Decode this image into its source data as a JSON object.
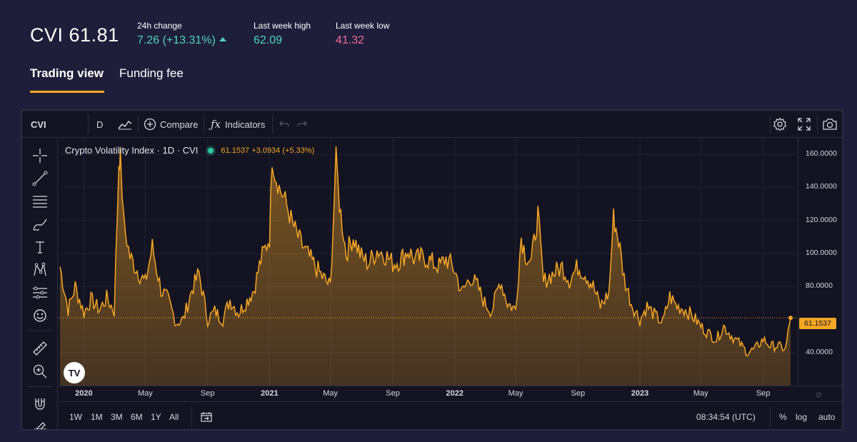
{
  "header": {
    "symbol": "CVI",
    "price": "61.81",
    "change_label": "24h change",
    "change_value": "7.26 (+13.31%)",
    "high_label": "Last week high",
    "high_value": "62.09",
    "low_label": "Last week low",
    "low_value": "41.32"
  },
  "tabs": [
    {
      "label": "Trading view",
      "active": true
    },
    {
      "label": "Funding fee",
      "active": false
    }
  ],
  "toolbar": {
    "symbol": "CVI",
    "interval": "D",
    "compare_label": "Compare",
    "indicators_label": "Indicators"
  },
  "legend": {
    "title": "Crypto Volatility Index · 1D · CVI",
    "values": "61.1537  +3.0934 (+5.33%)"
  },
  "price_tag": "61.1537",
  "bottombar": {
    "ranges": [
      "1W",
      "1M",
      "3M",
      "6M",
      "1Y",
      "All"
    ],
    "time": "08:34:54 (UTC)",
    "percent": "%",
    "log": "log",
    "auto": "auto"
  },
  "colors": {
    "accent": "#f6a623",
    "positive": "#4fd6bc",
    "negative": "#f06e9b",
    "background": "#1e1e3a",
    "chart_background": "#131322"
  },
  "icons": [
    "crosshair-icon",
    "trend-line-icon",
    "fib-icon",
    "brush-icon",
    "text-icon",
    "pattern-icon",
    "prediction-icon",
    "emoji-icon",
    "ruler-icon",
    "zoom-icon",
    "magnet-icon",
    "lock-draw-icon",
    "settings-icon",
    "fullscreen-icon",
    "camera-icon",
    "undo-icon",
    "redo-icon",
    "add-circle-icon",
    "fx-icon",
    "bars-style-icon",
    "date-range-icon",
    "sun-icon"
  ],
  "chart_data": {
    "type": "area",
    "series_name": "CVI",
    "x_ticks": [
      "2020",
      "May",
      "Sep",
      "2021",
      "May",
      "Sep",
      "2022",
      "May",
      "Sep",
      "2023",
      "May",
      "Sep"
    ],
    "y_ticks": [
      "40.0000",
      "80.0000",
      "100.0000",
      "120.0000",
      "140.0000",
      "160.0000"
    ],
    "ylim": [
      20,
      170
    ],
    "x": [
      "2019-11-15",
      "2019-12-01",
      "2019-12-15",
      "2020-01-01",
      "2020-01-15",
      "2020-02-01",
      "2020-02-15",
      "2020-03-01",
      "2020-03-10",
      "2020-03-13",
      "2020-03-20",
      "2020-04-01",
      "2020-04-15",
      "2020-05-01",
      "2020-05-15",
      "2020-06-01",
      "2020-06-15",
      "2020-07-01",
      "2020-07-15",
      "2020-08-01",
      "2020-08-15",
      "2020-09-01",
      "2020-09-15",
      "2020-10-01",
      "2020-10-15",
      "2020-11-01",
      "2020-11-15",
      "2020-12-01",
      "2020-12-15",
      "2021-01-01",
      "2021-01-06",
      "2021-01-12",
      "2021-01-20",
      "2021-02-01",
      "2021-02-15",
      "2021-03-01",
      "2021-03-15",
      "2021-04-01",
      "2021-04-15",
      "2021-05-01",
      "2021-05-12",
      "2021-05-19",
      "2021-06-01",
      "2021-06-15",
      "2021-07-01",
      "2021-07-15",
      "2021-08-01",
      "2021-08-15",
      "2021-09-01",
      "2021-09-15",
      "2021-10-01",
      "2021-10-15",
      "2021-11-01",
      "2021-11-15",
      "2021-12-01",
      "2021-12-15",
      "2022-01-01",
      "2022-01-15",
      "2022-02-01",
      "2022-02-15",
      "2022-03-01",
      "2022-03-15",
      "2022-04-01",
      "2022-04-15",
      "2022-05-01",
      "2022-05-12",
      "2022-05-20",
      "2022-06-01",
      "2022-06-14",
      "2022-06-25",
      "2022-07-01",
      "2022-07-15",
      "2022-08-01",
      "2022-08-15",
      "2022-09-01",
      "2022-09-15",
      "2022-10-01",
      "2022-10-15",
      "2022-11-01",
      "2022-11-10",
      "2022-11-20",
      "2022-12-01",
      "2022-12-15",
      "2023-01-01",
      "2023-01-15",
      "2023-02-01",
      "2023-02-15",
      "2023-03-01",
      "2023-03-15",
      "2023-04-01",
      "2023-04-15",
      "2023-05-01",
      "2023-05-15",
      "2023-06-01",
      "2023-06-15",
      "2023-07-01",
      "2023-07-15",
      "2023-08-01",
      "2023-08-15",
      "2023-09-01",
      "2023-09-15",
      "2023-10-01",
      "2023-10-15",
      "2023-10-25"
    ],
    "values": [
      92,
      66,
      80,
      64,
      72,
      66,
      73,
      65,
      155,
      158,
      118,
      98,
      90,
      82,
      104,
      78,
      72,
      58,
      60,
      78,
      88,
      60,
      65,
      60,
      72,
      64,
      70,
      78,
      96,
      110,
      158,
      148,
      140,
      132,
      118,
      108,
      100,
      92,
      86,
      80,
      158,
      130,
      100,
      110,
      98,
      94,
      102,
      100,
      94,
      96,
      102,
      96,
      98,
      95,
      92,
      97,
      90,
      76,
      86,
      80,
      70,
      65,
      84,
      70,
      66,
      110,
      100,
      95,
      124,
      82,
      85,
      88,
      92,
      84,
      92,
      88,
      80,
      68,
      76,
      122,
      108,
      85,
      70,
      60,
      68,
      62,
      58,
      74,
      68,
      66,
      62,
      56,
      52,
      48,
      56,
      50,
      46,
      40,
      42,
      48,
      44,
      44,
      42,
      61
    ]
  }
}
